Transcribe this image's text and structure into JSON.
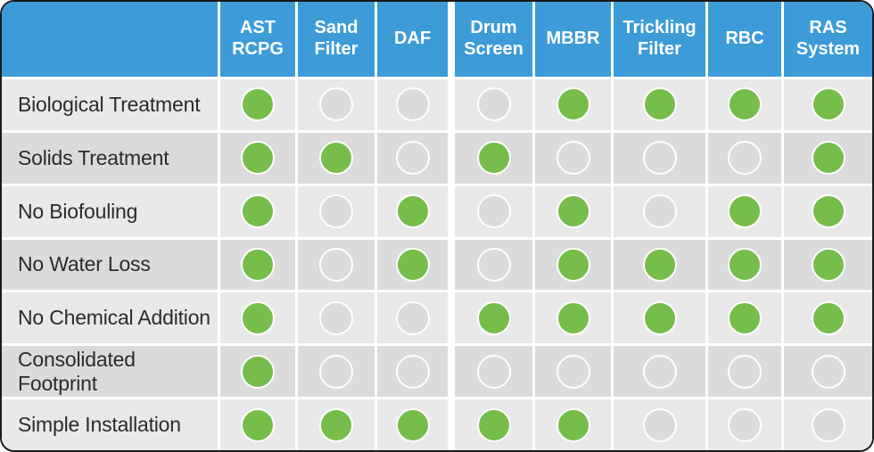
{
  "chart_data": {
    "type": "table",
    "title": "",
    "corner_header": "",
    "columns": [
      "AST RCPG",
      "Sand Filter",
      "DAF",
      "Drum Screen",
      "MBBR",
      "Trickling Filter",
      "RBC",
      "RAS System"
    ],
    "rows": [
      {
        "label": "Biological Treatment",
        "values": [
          1,
          0,
          0,
          0,
          1,
          1,
          1,
          1
        ]
      },
      {
        "label": "Solids Treatment",
        "values": [
          1,
          1,
          0,
          1,
          0,
          0,
          0,
          1
        ]
      },
      {
        "label": "No Biofouling",
        "values": [
          1,
          0,
          1,
          0,
          1,
          0,
          1,
          1
        ]
      },
      {
        "label": "No Water Loss",
        "values": [
          1,
          0,
          1,
          0,
          1,
          1,
          1,
          1
        ]
      },
      {
        "label": "No Chemical Addition",
        "values": [
          1,
          0,
          0,
          1,
          1,
          1,
          1,
          1
        ]
      },
      {
        "label": "Consolidated Footprint",
        "values": [
          1,
          0,
          0,
          0,
          0,
          0,
          0,
          0
        ]
      },
      {
        "label": "Simple Installation",
        "values": [
          1,
          1,
          1,
          1,
          1,
          0,
          0,
          0
        ]
      }
    ],
    "layout_hints": {
      "wide_gap_after_column": "DAF",
      "row_striping": "alternating light/dark gray starting light"
    }
  },
  "icons": {
    "yes": "green-filled-circle",
    "no": "gray-empty-circle"
  },
  "colors": {
    "header_bg": "#3d9bd7",
    "header_text": "#ffffff",
    "yes_dot": "#76bd4b",
    "no_dot_fill": "#dbdbdb",
    "dot_ring": "#ffffff",
    "row_light": "#e9e9e9",
    "row_dark": "#dbdbdb",
    "label_text": "#2b2b2b",
    "card_border": "#1a1a1a"
  }
}
